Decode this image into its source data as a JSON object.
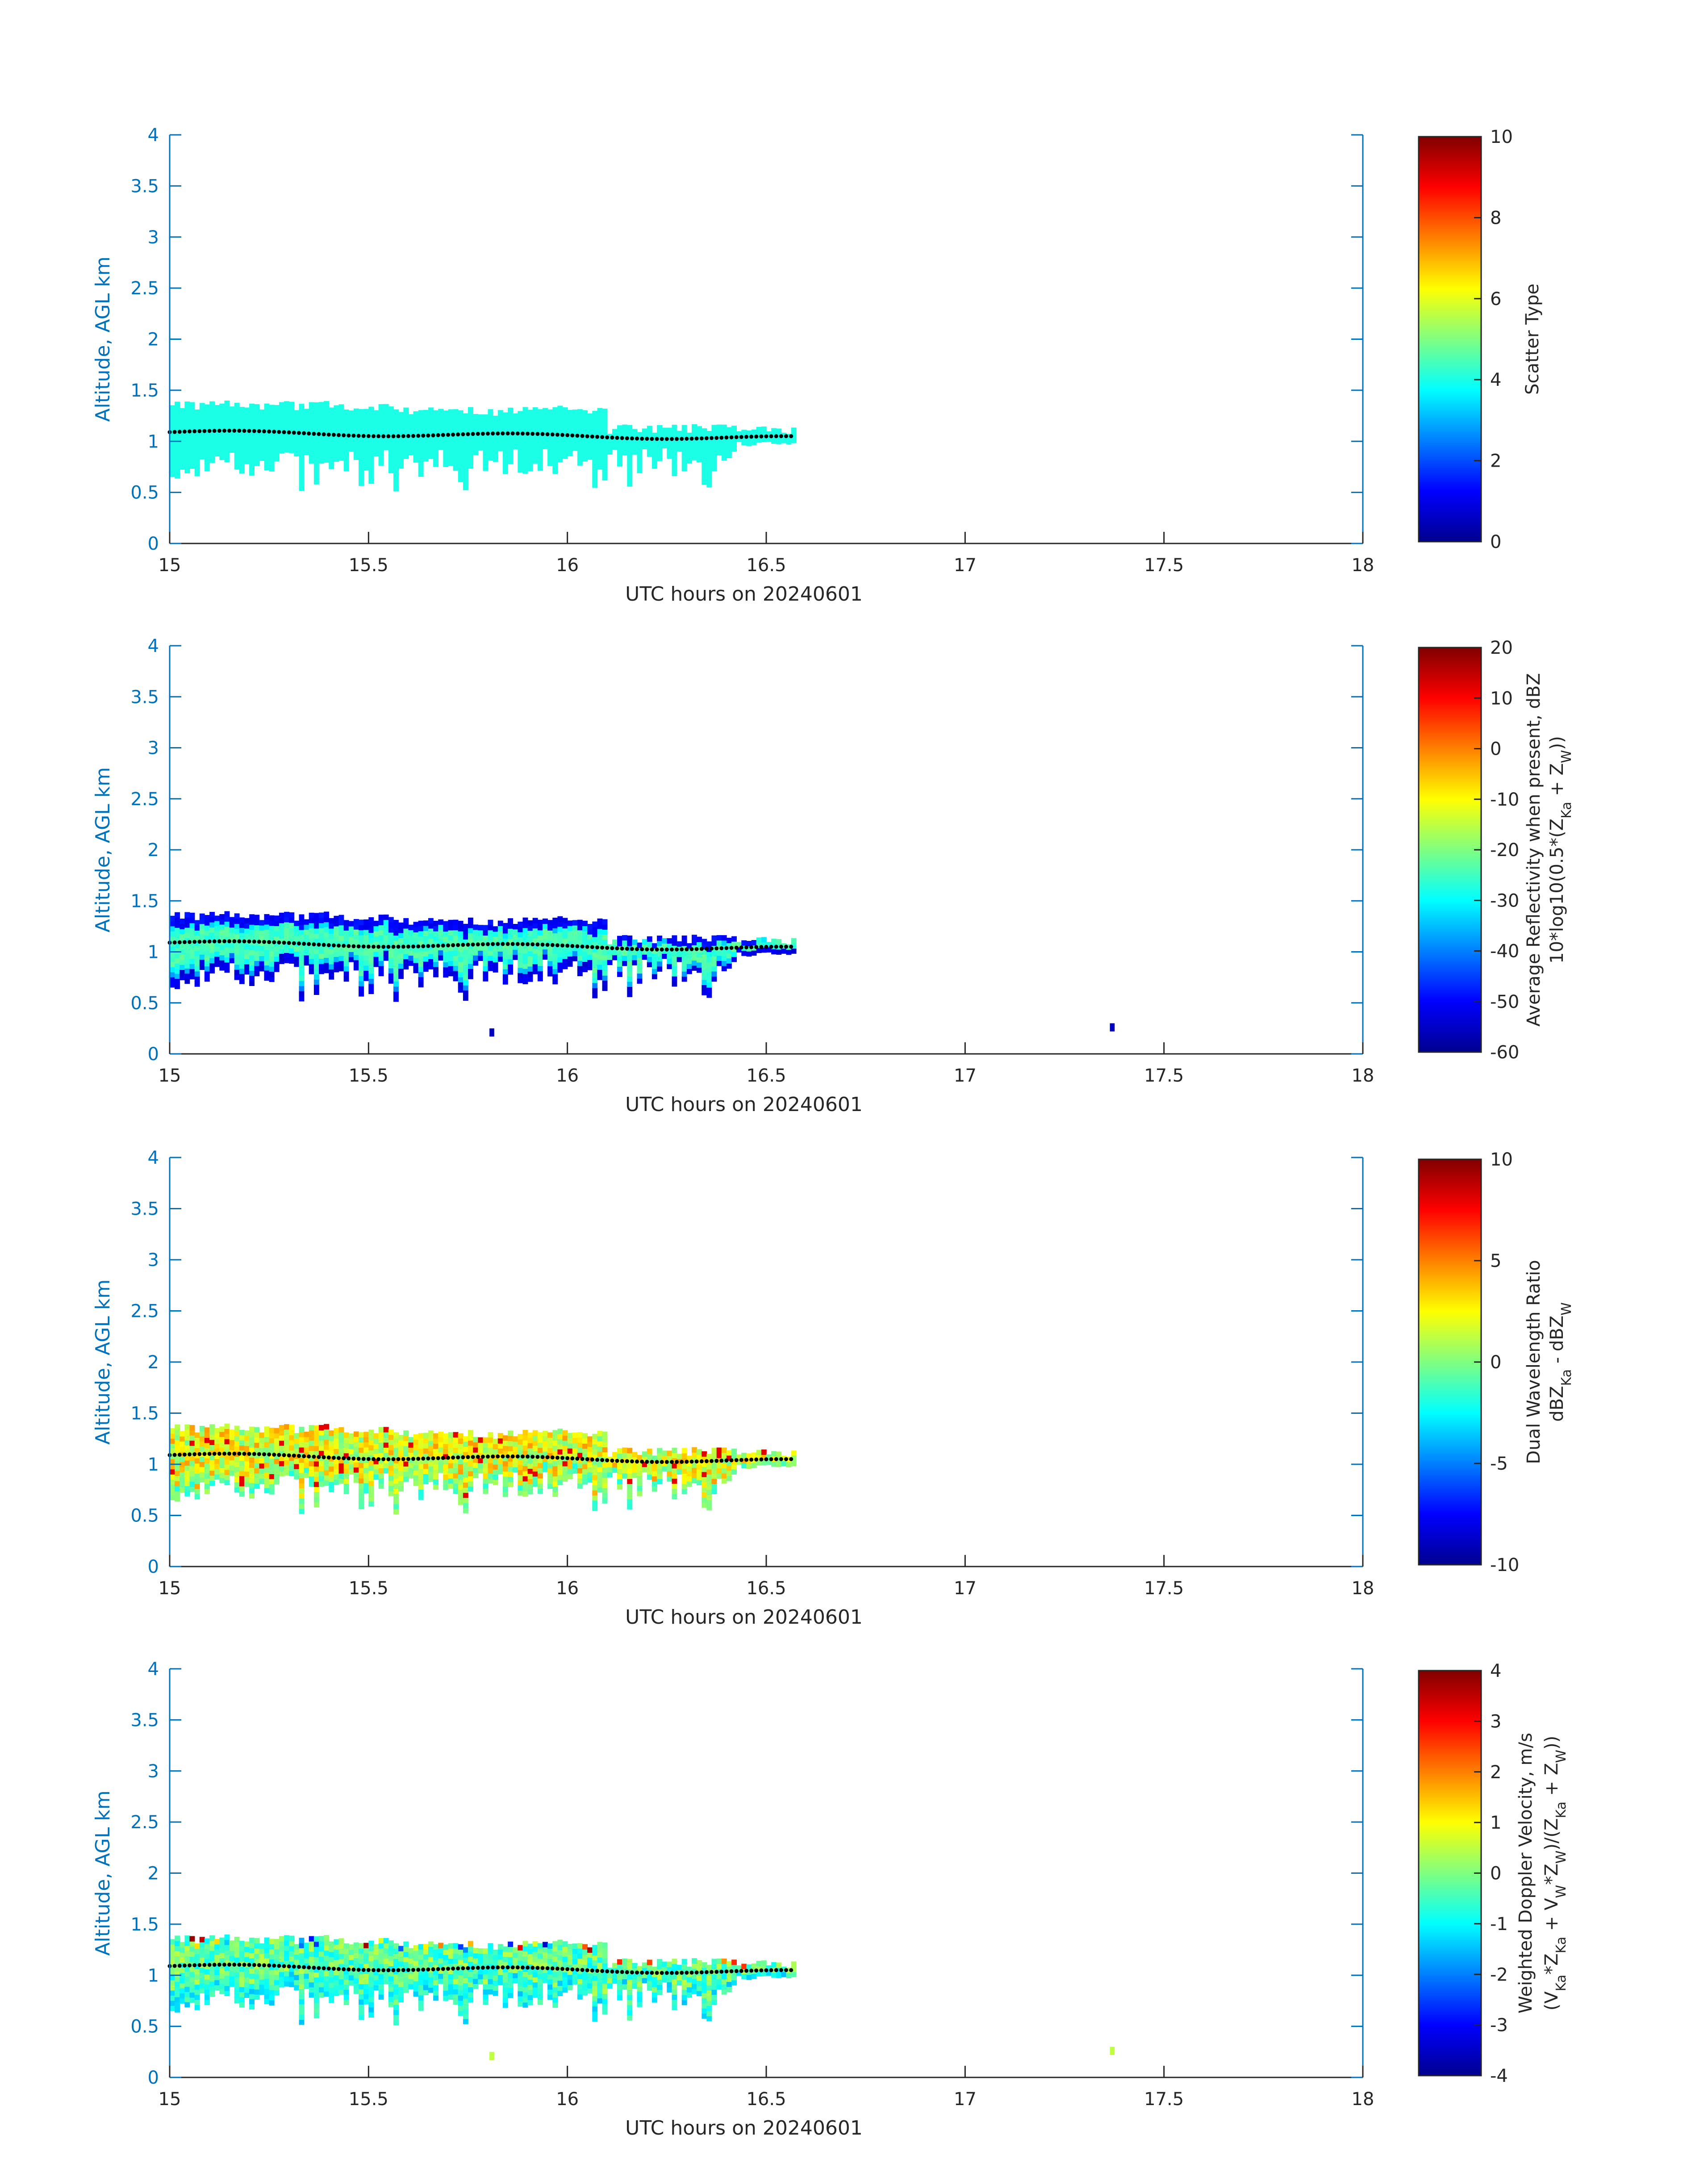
{
  "colors": {
    "axis_blue": "#0072BD",
    "cloud_dots": "#000000"
  },
  "panels": [
    {
      "xlabel": "UTC hours on 20240601",
      "ylabel": "Altitude, AGL km",
      "cb_label_lines": [
        "Scatter Type"
      ],
      "cb_ticks": [
        "10",
        "8",
        "6",
        "4",
        "2",
        "0"
      ],
      "field": "scatter"
    },
    {
      "xlabel": "UTC hours on 20240601",
      "ylabel": "Altitude, AGL km",
      "cb_label_lines": [
        "Average Reflectivity when present, dBZ",
        "10*log10(0.5*(Z",
        "Ka",
        " + Z",
        "W",
        "))"
      ],
      "cb_ticks": [
        "20",
        "10",
        "0",
        "-10",
        "-20",
        "-30",
        "-40",
        "-50",
        "-60"
      ],
      "field": "refl"
    },
    {
      "xlabel": "UTC hours on 20240601",
      "ylabel": "Altitude, AGL km",
      "cb_label_lines": [
        "Dual Wavelength Ratio",
        "dBZ",
        "Ka",
        " - dBZ",
        "W"
      ],
      "cb_ticks": [
        "10",
        "5",
        "0",
        "-5",
        "-10"
      ],
      "field": "dwr"
    },
    {
      "xlabel": "UTC hours on 20240601",
      "ylabel": "Altitude, AGL km",
      "cb_label_lines": [
        "Weighted Doppler Velocity, m/s",
        "(V",
        "Ka",
        "*Z",
        "Ka",
        " + V",
        "W",
        "*Z",
        "W",
        ")/(Z",
        "Ka",
        " + Z",
        "W",
        "))"
      ],
      "cb_ticks": [
        "4",
        "3",
        "2",
        "1",
        "0",
        "-1",
        "-2",
        "-3",
        "-4"
      ],
      "field": "vel"
    }
  ],
  "chart_data": [
    {
      "type": "heatmap",
      "title": "",
      "xlabel": "UTC hours on 20240601",
      "ylabel": "Altitude, AGL km",
      "xlim": [
        15,
        18
      ],
      "ylim": [
        0,
        4
      ],
      "xticks": [
        "15",
        "15.5",
        "16",
        "16.5",
        "17",
        "17.5",
        "18"
      ],
      "yticks": [
        "0",
        "0.5",
        "1",
        "1.5",
        "2",
        "2.5",
        "3",
        "3.5",
        "4"
      ],
      "colorbar_label": "Scatter Type",
      "clim": [
        0,
        10
      ],
      "data_time_range": [
        15,
        16.57
      ],
      "cloud_top_km": 1.35,
      "cloud_base_km_range": [
        0.4,
        0.9
      ],
      "dominant_value": 4,
      "dotted_line_altitude_km": [
        1.08,
        1.12,
        1.1,
        1.08,
        1.05,
        1.02,
        1.0
      ]
    },
    {
      "type": "heatmap",
      "title": "",
      "xlabel": "UTC hours on 20240601",
      "ylabel": "Altitude, AGL km",
      "xlim": [
        15,
        18
      ],
      "ylim": [
        0,
        4
      ],
      "xticks": [
        "15",
        "15.5",
        "16",
        "16.5",
        "17",
        "17.5",
        "18"
      ],
      "yticks": [
        "0",
        "0.5",
        "1",
        "1.5",
        "2",
        "2.5",
        "3",
        "3.5",
        "4"
      ],
      "colorbar_label": "Average Reflectivity when present, dBZ 10*log10(0.5*(ZKa + ZW))",
      "clim": [
        -60,
        20
      ],
      "data_time_range": [
        15,
        16.57
      ],
      "cloud_top_km": 1.35,
      "value_range_dbz": [
        -55,
        -25
      ],
      "isolated_echoes": [
        {
          "t": 15.81,
          "alt_km": 0.2
        },
        {
          "t": 17.37,
          "alt_km": 0.25
        }
      ],
      "dotted_line_altitude_km": [
        1.08,
        1.12,
        1.1,
        1.08,
        1.05,
        1.02,
        1.0
      ]
    },
    {
      "type": "heatmap",
      "title": "",
      "xlabel": "UTC hours on 20240601",
      "ylabel": "Altitude, AGL km",
      "xlim": [
        15,
        18
      ],
      "ylim": [
        0,
        4
      ],
      "xticks": [
        "15",
        "15.5",
        "16",
        "16.5",
        "17",
        "17.5",
        "18"
      ],
      "yticks": [
        "0",
        "0.5",
        "1",
        "1.5",
        "2",
        "2.5",
        "3",
        "3.5",
        "4"
      ],
      "colorbar_label": "Dual Wavelength Ratio dBZKa - dBZW",
      "clim": [
        -10,
        10
      ],
      "data_time_range": [
        15,
        16.57
      ],
      "cloud_top_km": 1.35,
      "value_range_db": [
        -3,
        8
      ],
      "dotted_line_altitude_km": [
        1.08,
        1.12,
        1.1,
        1.08,
        1.05,
        1.02,
        1.0
      ]
    },
    {
      "type": "heatmap",
      "title": "",
      "xlabel": "UTC hours on 20240601",
      "ylabel": "Altitude, AGL km",
      "xlim": [
        15,
        18
      ],
      "ylim": [
        0,
        4
      ],
      "xticks": [
        "15",
        "15.5",
        "16",
        "16.5",
        "17",
        "17.5",
        "18"
      ],
      "yticks": [
        "0",
        "0.5",
        "1",
        "1.5",
        "2",
        "2.5",
        "3",
        "3.5",
        "4"
      ],
      "colorbar_label": "Weighted Doppler Velocity, m/s (VKa*ZKa + VW*ZW)/(ZKa + ZW))",
      "clim": [
        -4,
        4
      ],
      "data_time_range": [
        15,
        16.57
      ],
      "cloud_top_km": 1.35,
      "value_range_ms": [
        -4,
        4
      ],
      "isolated_echoes": [
        {
          "t": 15.81,
          "alt_km": 0.2
        },
        {
          "t": 17.37,
          "alt_km": 0.25
        }
      ],
      "dotted_line_altitude_km": [
        1.08,
        1.12,
        1.1,
        1.08,
        1.05,
        1.02,
        1.0
      ]
    }
  ]
}
